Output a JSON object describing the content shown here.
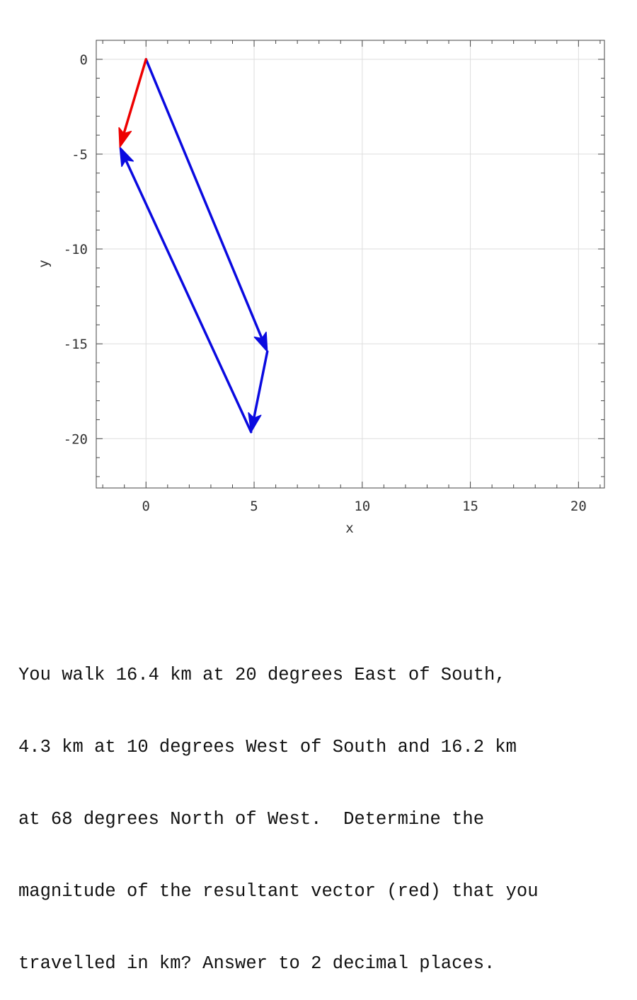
{
  "chart_data": {
    "type": "vector",
    "xlabel": "x",
    "ylabel": "y",
    "xlim": [
      -2.3,
      21.2
    ],
    "ylim": [
      -22.6,
      1.0
    ],
    "x_ticks": [
      0,
      5,
      10,
      15,
      20
    ],
    "y_ticks": [
      0,
      -5,
      -10,
      -15,
      -20
    ],
    "x_tick_labels": [
      "0",
      "5",
      "10",
      "15",
      "20"
    ],
    "y_tick_labels": [
      "0",
      "-5",
      "-10",
      "-15",
      "-20"
    ],
    "grid": true,
    "vectors": [
      {
        "start": [
          0,
          0
        ],
        "end": [
          5.61,
          -15.41
        ],
        "color": "#0a0ae0"
      },
      {
        "start": [
          5.61,
          -15.41
        ],
        "end": [
          4.86,
          -19.65
        ],
        "color": "#0a0ae0"
      },
      {
        "start": [
          4.86,
          -19.65
        ],
        "end": [
          -1.21,
          -4.63
        ],
        "color": "#0a0ae0"
      },
      {
        "start": [
          0,
          0
        ],
        "end": [
          -1.21,
          -4.63
        ],
        "color": "#ee0000"
      }
    ]
  },
  "question": {
    "lines": [
      "You walk 16.4 km at 20 degrees East of South,",
      "4.3 km at 10 degrees West of South and 16.2 km",
      "at 68 degrees North of West.  Determine the",
      "magnitude of the resultant vector (red) that you",
      "travelled in km? Answer to 2 decimal places."
    ]
  }
}
